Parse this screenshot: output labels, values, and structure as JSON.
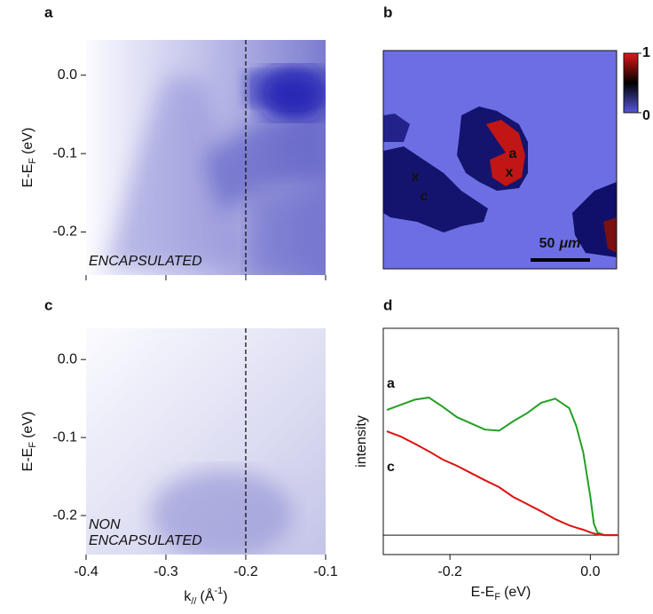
{
  "chart_data": [
    {
      "type": "image",
      "panel": "a",
      "ylabel": {
        "main": "E-E",
        "sub": "F",
        "unit": "(eV)"
      },
      "xlim": [
        -0.4,
        -0.1
      ],
      "ylim": [
        -0.255,
        0.045
      ],
      "xticks": [
        -0.4,
        -0.3,
        -0.2,
        -0.1
      ],
      "xtick_labels_shown": false,
      "yticks": [
        {
          "value": 0,
          "label": "0.0"
        },
        -0.1,
        -0.2
      ],
      "vline": -0.2,
      "annotation": [
        "ENCAPSULATED"
      ],
      "colormap": "#1616b0"
    },
    {
      "type": "map",
      "panel": "b",
      "colorbar_ticks": [
        0,
        1
      ],
      "colorbar_colors": [
        "#5656dc",
        "#000000",
        "#e01818"
      ],
      "spots": [
        {
          "label": "a",
          "marker": "x"
        },
        {
          "label": "c",
          "marker": "x"
        }
      ],
      "scalebar": {
        "length": 50,
        "unit": "μm"
      }
    },
    {
      "type": "image",
      "panel": "c",
      "ylabel": {
        "main": "E-E",
        "sub": "F",
        "unit": "(eV)"
      },
      "xlabel": {
        "main": "k",
        "sub": "//",
        "unit": "(Å",
        "sup": "-1",
        "end": ")"
      },
      "xlim": [
        -0.4,
        -0.1
      ],
      "ylim": [
        -0.25,
        0.04
      ],
      "xticks": [
        -0.4,
        -0.3,
        -0.2,
        -0.1
      ],
      "xtick_labels_shown": true,
      "yticks": [
        {
          "value": 0,
          "label": "0.0"
        },
        -0.1,
        -0.2
      ],
      "vline": -0.2,
      "annotation": [
        "NON",
        "ENCAPSULATED"
      ],
      "colormap": "#3c3cb4"
    },
    {
      "type": "line",
      "panel": "d",
      "ylabel": "intensity",
      "xlabel": {
        "main": "E-E",
        "sub": "F",
        "unit": "(eV)"
      },
      "xlim": [
        -0.295,
        0.04
      ],
      "ylim": [
        -0.094,
        1
      ],
      "xticks": [
        -0.2,
        {
          "value": 0,
          "label": "0.0"
        }
      ],
      "hline": 0,
      "x": [
        -0.29,
        -0.27,
        -0.25,
        -0.23,
        -0.21,
        -0.19,
        -0.17,
        -0.15,
        -0.13,
        -0.11,
        -0.09,
        -0.07,
        -0.05,
        -0.03,
        -0.02,
        -0.01,
        0,
        0.005,
        0.01,
        0.02,
        0.04
      ],
      "series": [
        {
          "name": "a",
          "color": "#22a022",
          "values": [
            0.605,
            0.63,
            0.655,
            0.665,
            0.62,
            0.57,
            0.54,
            0.51,
            0.505,
            0.55,
            0.59,
            0.64,
            0.66,
            0.614,
            0.528,
            0.4,
            0.185,
            0.056,
            0.013,
            0,
            0
          ]
        },
        {
          "name": "c",
          "color": "#dd1111",
          "values": [
            0.502,
            0.476,
            0.442,
            0.405,
            0.365,
            0.335,
            0.3,
            0.265,
            0.232,
            0.185,
            0.15,
            0.115,
            0.077,
            0.047,
            0.036,
            0.026,
            0.013,
            0.008,
            0.004,
            0,
            0
          ]
        }
      ]
    }
  ]
}
